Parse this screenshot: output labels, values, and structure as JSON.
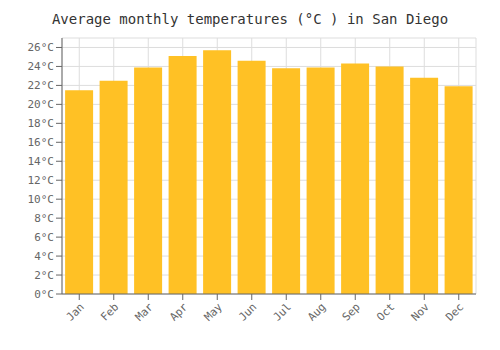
{
  "chart_data": {
    "type": "bar",
    "title": "Average monthly temperatures (°C ) in San Diego",
    "categories": [
      "Jan",
      "Feb",
      "Mar",
      "Apr",
      "May",
      "Jun",
      "Jul",
      "Aug",
      "Sep",
      "Oct",
      "Nov",
      "Dec"
    ],
    "values": [
      21.5,
      22.5,
      23.9,
      25.1,
      25.7,
      24.6,
      23.8,
      23.9,
      24.3,
      24.0,
      22.8,
      21.9
    ],
    "color": "#FFC125",
    "ylim": [
      0,
      27
    ],
    "yticks": [
      {
        "value": 0,
        "label": "0°C"
      },
      {
        "value": 2,
        "label": "2°C"
      },
      {
        "value": 4,
        "label": "4°C"
      },
      {
        "value": 6,
        "label": "6°C"
      },
      {
        "value": 8,
        "label": "8°C"
      },
      {
        "value": 10,
        "label": "10°C"
      },
      {
        "value": 12,
        "label": "12°C"
      },
      {
        "value": 14,
        "label": "14°C"
      },
      {
        "value": 16,
        "label": "16°C"
      },
      {
        "value": 18,
        "label": "18°C"
      },
      {
        "value": 20,
        "label": "20°C"
      },
      {
        "value": 22,
        "label": "22°C"
      },
      {
        "value": 24,
        "label": "24°C"
      },
      {
        "value": 26,
        "label": "26°C"
      }
    ],
    "grid": true
  }
}
